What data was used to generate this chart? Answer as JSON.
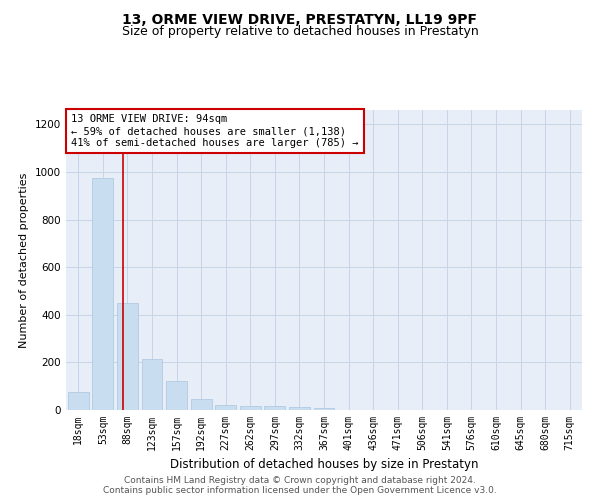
{
  "title": "13, ORME VIEW DRIVE, PRESTATYN, LL19 9PF",
  "subtitle": "Size of property relative to detached houses in Prestatyn",
  "xlabel": "Distribution of detached houses by size in Prestatyn",
  "ylabel": "Number of detached properties",
  "categories": [
    "18sqm",
    "53sqm",
    "88sqm",
    "123sqm",
    "157sqm",
    "192sqm",
    "227sqm",
    "262sqm",
    "297sqm",
    "332sqm",
    "367sqm",
    "401sqm",
    "436sqm",
    "471sqm",
    "506sqm",
    "541sqm",
    "576sqm",
    "610sqm",
    "645sqm",
    "680sqm",
    "715sqm"
  ],
  "values": [
    75,
    975,
    450,
    215,
    120,
    45,
    20,
    18,
    16,
    12,
    8,
    0,
    0,
    0,
    0,
    0,
    0,
    0,
    0,
    0,
    0
  ],
  "bar_color": "#c9ddf0",
  "bar_edge_color": "#aac4df",
  "red_line_x": 1.82,
  "annotation_title": "13 ORME VIEW DRIVE: 94sqm",
  "annotation_line1": "← 59% of detached houses are smaller (1,138)",
  "annotation_line2": "41% of semi-detached houses are larger (785) →",
  "annotation_box_color": "#ffffff",
  "annotation_box_edge": "#cc0000",
  "red_line_color": "#cc0000",
  "ylim": [
    0,
    1260
  ],
  "yticks": [
    0,
    200,
    400,
    600,
    800,
    1000,
    1200
  ],
  "grid_color": "#c8d4e8",
  "background_color": "#e8eef8",
  "footer_line1": "Contains HM Land Registry data © Crown copyright and database right 2024.",
  "footer_line2": "Contains public sector information licensed under the Open Government Licence v3.0.",
  "title_fontsize": 10,
  "subtitle_fontsize": 9,
  "ylabel_fontsize": 8,
  "xlabel_fontsize": 8.5,
  "annotation_fontsize": 7.5,
  "tick_fontsize": 7,
  "ytick_fontsize": 7.5,
  "footer_fontsize": 6.5
}
